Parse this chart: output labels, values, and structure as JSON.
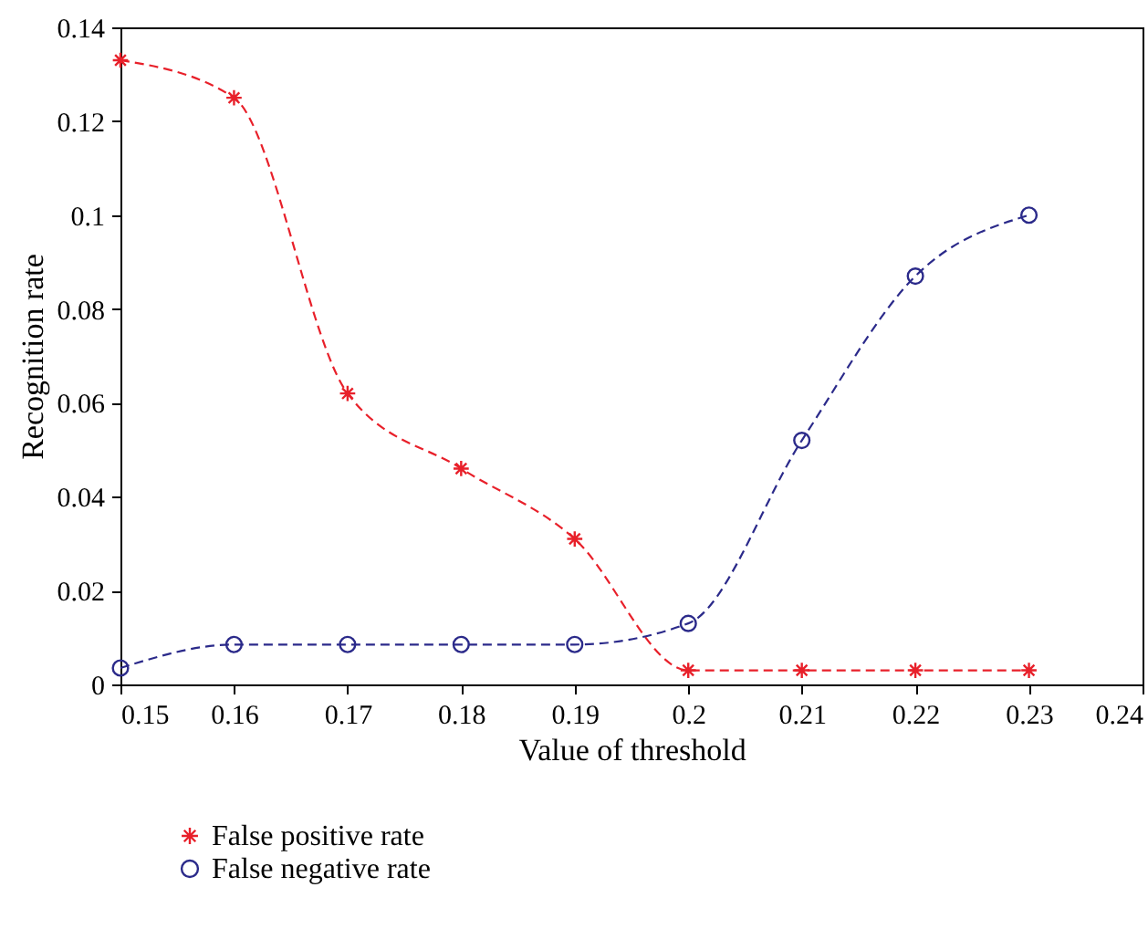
{
  "chart_data": {
    "type": "line",
    "xlabel": "Value of threshold",
    "ylabel": "Recognition rate",
    "x": [
      0.15,
      0.16,
      0.17,
      0.18,
      0.19,
      0.2,
      0.21,
      0.22,
      0.23
    ],
    "series": [
      {
        "name": "False positive rate",
        "color": "#e8202a",
        "marker": "cross",
        "values": [
          0.133,
          0.125,
          0.062,
          0.046,
          0.031,
          0.003,
          0.003,
          0.003,
          0.003
        ]
      },
      {
        "name": "False negative rate",
        "color": "#2b2a8a",
        "marker": "circle",
        "values": [
          0.0035,
          0.0085,
          0.0085,
          0.0085,
          0.0085,
          0.013,
          0.052,
          0.087,
          0.1
        ]
      }
    ],
    "xlim": [
      0.15,
      0.24
    ],
    "xticks": [
      0.15,
      0.16,
      0.17,
      0.18,
      0.19,
      0.2,
      0.21,
      0.22,
      0.23,
      0.24
    ],
    "ylim": [
      0,
      0.14
    ],
    "yticks": [
      0,
      0.02,
      0.04,
      0.06,
      0.08,
      0.1,
      0.12,
      0.14
    ],
    "line_style": "dashed",
    "grid": false,
    "legend": "bottom left"
  }
}
